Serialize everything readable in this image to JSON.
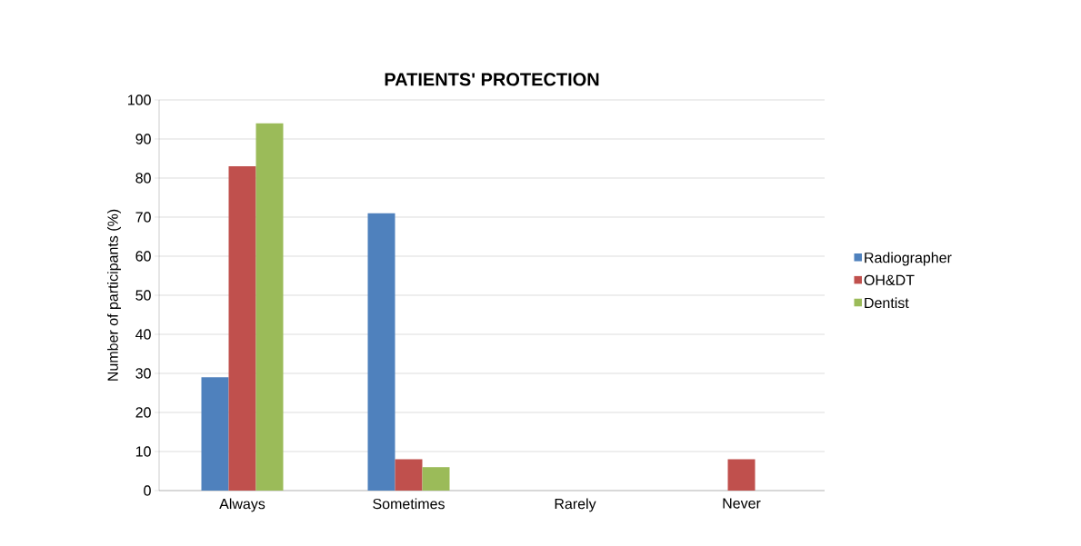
{
  "chart_data": {
    "type": "bar",
    "title": "PATIENTS' PROTECTION",
    "ylabel": "Number of  participants (%)",
    "categories": [
      "Always",
      "Sometimes",
      "Rarely",
      "Never"
    ],
    "series": [
      {
        "name": "Radiographer",
        "color": "#4f81bd",
        "values": [
          29,
          71,
          0,
          0
        ]
      },
      {
        "name": "OH&DT",
        "color": "#c0504d",
        "values": [
          83,
          8,
          0,
          8
        ]
      },
      {
        "name": "Dentist",
        "color": "#9bbb59",
        "values": [
          94,
          6,
          0,
          0
        ]
      }
    ],
    "ylim": [
      0,
      100
    ],
    "yticks": [
      0,
      10,
      20,
      30,
      40,
      50,
      60,
      70,
      80,
      90,
      100
    ],
    "grid": "y",
    "legend": "right"
  }
}
